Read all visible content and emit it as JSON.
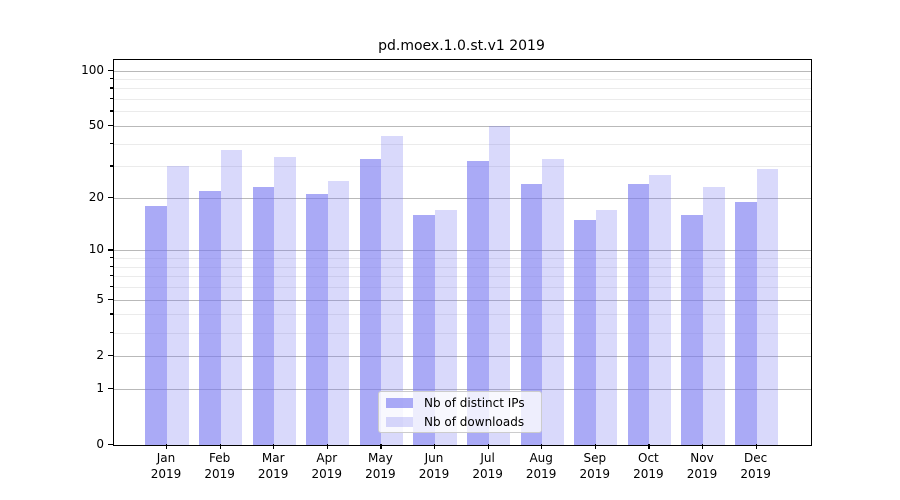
{
  "title": "pd.moex.1.0.st.v1 2019",
  "legend": {
    "items": [
      {
        "label": "Nb of distinct IPs"
      },
      {
        "label": "Nb of downloads"
      }
    ]
  },
  "colors": {
    "bar_distinct_ips": "rgba(120,120,240,0.63)",
    "bar_downloads": "rgba(120,120,240,0.28)",
    "grid_major": "#b9b9b9",
    "grid_minor": "#ebebeb",
    "axis": "#000000"
  },
  "chart_data": {
    "type": "bar",
    "title": "pd.moex.1.0.st.v1 2019",
    "categories": [
      "Jan",
      "Feb",
      "Mar",
      "Apr",
      "May",
      "Jun",
      "Jul",
      "Aug",
      "Sep",
      "Oct",
      "Nov",
      "Dec"
    ],
    "category_year": "2019",
    "series": [
      {
        "name": "Nb of distinct IPs",
        "color": "rgba(120,120,240,0.63)",
        "values": [
          18,
          22,
          23,
          21,
          33,
          16,
          32,
          24,
          15,
          24,
          16,
          19
        ]
      },
      {
        "name": "Nb of downloads",
        "color": "rgba(120,120,240,0.28)",
        "values": [
          30,
          37,
          34,
          25,
          44,
          17,
          50,
          33,
          17,
          27,
          23,
          29
        ]
      }
    ],
    "xlabel": "",
    "ylabel": "",
    "yscale": "log1p",
    "ylim": [
      0,
      114
    ],
    "y_major_ticks": [
      0,
      1,
      2,
      5,
      10,
      20,
      50,
      100
    ],
    "y_minor_ticks": [
      3,
      4,
      6,
      7,
      8,
      9,
      30,
      40,
      60,
      70,
      80,
      90
    ],
    "grid": true,
    "legend_position": "lower center"
  }
}
